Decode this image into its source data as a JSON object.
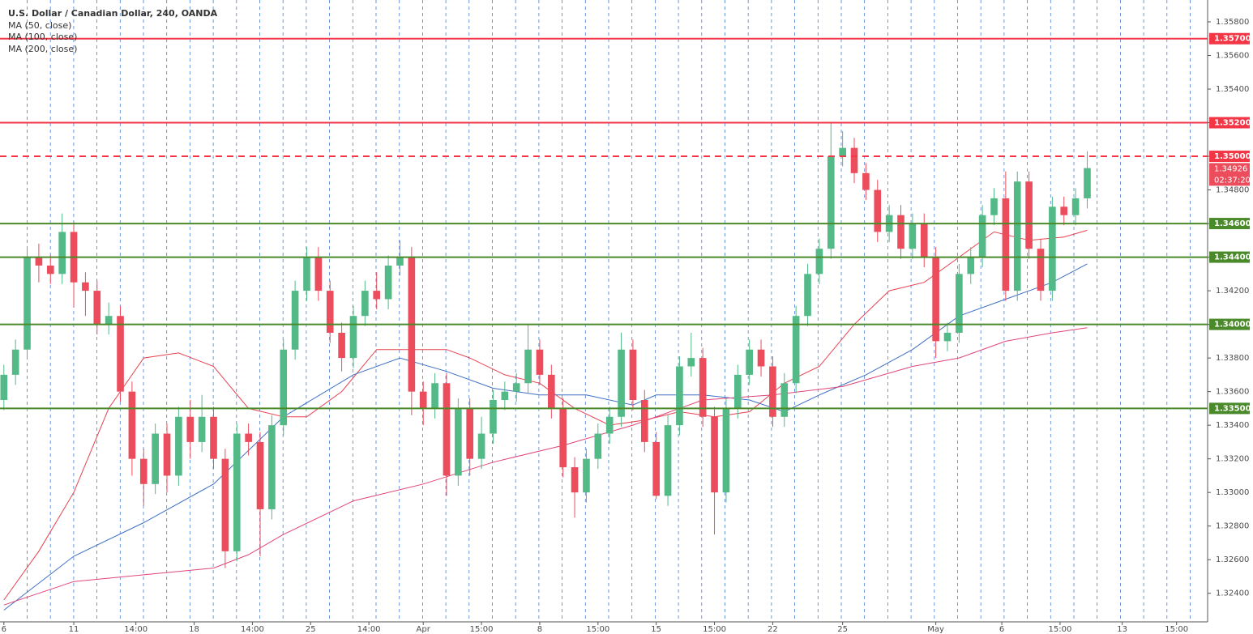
{
  "chart_data": {
    "type": "candlestick",
    "title": "U.S. Dollar / Canadian Dollar, 240, OANDA",
    "up_color": "#53b987",
    "down_color": "#eb4d5c",
    "x": [
      0,
      3,
      6,
      9,
      12,
      15,
      18,
      21,
      24,
      27,
      30,
      33,
      36,
      39,
      42,
      45,
      48,
      51,
      54,
      57,
      60,
      63,
      66,
      69,
      72,
      75,
      78,
      81,
      84,
      87,
      90,
      93,
      96,
      99,
      102,
      105,
      108,
      111,
      114,
      117,
      120,
      123,
      126,
      129,
      132,
      135,
      138,
      141,
      144,
      147,
      150,
      153,
      156,
      159,
      162,
      165,
      168,
      171,
      174,
      177,
      180,
      183,
      186,
      189,
      192,
      195,
      198,
      201,
      204,
      207,
      210,
      213,
      216,
      219,
      222,
      225,
      228,
      231,
      234,
      237,
      240,
      243,
      246,
      249,
      252,
      255,
      258,
      261,
      264,
      267,
      270,
      273,
      276,
      279
    ],
    "open": [
      1.3355,
      1.337,
      1.3385,
      1.344,
      1.3435,
      1.343,
      1.3455,
      1.3425,
      1.342,
      1.34,
      1.3405,
      1.336,
      1.332,
      1.3305,
      1.3335,
      1.331,
      1.3345,
      1.333,
      1.3345,
      1.332,
      1.3265,
      1.3335,
      1.333,
      1.329,
      1.334,
      1.3385,
      1.342,
      1.344,
      1.342,
      1.3395,
      1.338,
      1.3405,
      1.342,
      1.3415,
      1.3435,
      1.344,
      1.336,
      1.335,
      1.3365,
      1.331,
      1.335,
      1.332,
      1.3335,
      1.3355,
      1.336,
      1.3365,
      1.3385,
      1.337,
      1.335,
      1.3315,
      1.33,
      1.332,
      1.3335,
      1.3345,
      1.3385,
      1.3355,
      1.333,
      1.3298,
      1.334,
      1.3375,
      1.338,
      1.3345,
      1.33,
      1.335,
      1.337,
      1.3385,
      1.3375,
      1.3345,
      1.3365,
      1.3405,
      1.343,
      1.3445,
      1.35,
      1.3505,
      1.349,
      1.348,
      1.3455,
      1.3465,
      1.3445,
      1.346,
      1.344,
      1.339,
      1.3395,
      1.343,
      1.344,
      1.3465,
      1.3475,
      1.342,
      1.3485,
      1.3445,
      1.342,
      1.347,
      1.3465,
      1.3475
    ],
    "high": [
      1.3376,
      1.3391,
      1.3446,
      1.3448,
      1.3441,
      1.3466,
      1.3461,
      1.3431,
      1.3426,
      1.3413,
      1.3411,
      1.3366,
      1.3326,
      1.3341,
      1.3341,
      1.3351,
      1.3355,
      1.3358,
      1.3351,
      1.3326,
      1.3341,
      1.3341,
      1.3336,
      1.3346,
      1.3391,
      1.3426,
      1.3446,
      1.3446,
      1.3426,
      1.3401,
      1.3411,
      1.3426,
      1.3431,
      1.3441,
      1.345,
      1.3446,
      1.3366,
      1.3371,
      1.3371,
      1.3356,
      1.3356,
      1.3345,
      1.3361,
      1.3366,
      1.3371,
      1.34,
      1.3391,
      1.3376,
      1.3356,
      1.3321,
      1.3326,
      1.3341,
      1.3351,
      1.3395,
      1.3391,
      1.3361,
      1.3336,
      1.3346,
      1.3381,
      1.3395,
      1.3386,
      1.3351,
      1.3356,
      1.3376,
      1.3391,
      1.3391,
      1.3381,
      1.3371,
      1.3411,
      1.3436,
      1.3451,
      1.352,
      1.3515,
      1.3511,
      1.3496,
      1.3486,
      1.3471,
      1.3471,
      1.3466,
      1.3466,
      1.3446,
      1.3401,
      1.3436,
      1.3446,
      1.3471,
      1.3481,
      1.3491,
      1.3491,
      1.3491,
      1.3451,
      1.3476,
      1.3476,
      1.3481,
      1.3503
    ],
    "low": [
      1.3349,
      1.3364,
      1.3379,
      1.3425,
      1.3424,
      1.3424,
      1.341,
      1.3405,
      1.3394,
      1.3394,
      1.3354,
      1.331,
      1.3292,
      1.3299,
      1.33,
      1.3304,
      1.332,
      1.3324,
      1.3314,
      1.3255,
      1.3259,
      1.3322,
      1.3262,
      1.3284,
      1.3334,
      1.3379,
      1.3414,
      1.3414,
      1.3389,
      1.3372,
      1.3374,
      1.3399,
      1.3409,
      1.3409,
      1.3429,
      1.3346,
      1.334,
      1.3344,
      1.3298,
      1.3304,
      1.331,
      1.3314,
      1.3329,
      1.3349,
      1.3354,
      1.3359,
      1.3364,
      1.3344,
      1.3309,
      1.3285,
      1.3294,
      1.3314,
      1.3329,
      1.3339,
      1.3349,
      1.3324,
      1.3296,
      1.3292,
      1.3334,
      1.3369,
      1.3339,
      1.3275,
      1.3294,
      1.3344,
      1.3364,
      1.3369,
      1.3339,
      1.3339,
      1.3359,
      1.3399,
      1.3424,
      1.3439,
      1.3494,
      1.3484,
      1.3474,
      1.3449,
      1.3449,
      1.3439,
      1.3439,
      1.3434,
      1.338,
      1.3384,
      1.3389,
      1.3424,
      1.3434,
      1.3459,
      1.3414,
      1.3414,
      1.3439,
      1.3414,
      1.3414,
      1.3459,
      1.3459,
      1.3469
    ],
    "close": [
      1.337,
      1.3385,
      1.344,
      1.3435,
      1.343,
      1.3455,
      1.3425,
      1.342,
      1.34,
      1.3405,
      1.336,
      1.332,
      1.3305,
      1.3335,
      1.331,
      1.3345,
      1.333,
      1.3345,
      1.332,
      1.3265,
      1.3335,
      1.333,
      1.329,
      1.334,
      1.3385,
      1.342,
      1.344,
      1.342,
      1.3395,
      1.338,
      1.3405,
      1.342,
      1.3415,
      1.3435,
      1.344,
      1.336,
      1.335,
      1.3365,
      1.331,
      1.335,
      1.332,
      1.3335,
      1.3355,
      1.336,
      1.3365,
      1.3385,
      1.337,
      1.335,
      1.3315,
      1.33,
      1.332,
      1.3335,
      1.3345,
      1.3385,
      1.3355,
      1.333,
      1.3298,
      1.334,
      1.3375,
      1.338,
      1.3345,
      1.33,
      1.335,
      1.337,
      1.3385,
      1.3375,
      1.3345,
      1.3365,
      1.3405,
      1.343,
      1.3445,
      1.35,
      1.3505,
      1.349,
      1.348,
      1.3455,
      1.3465,
      1.3445,
      1.346,
      1.344,
      1.339,
      1.3395,
      1.343,
      1.344,
      1.3465,
      1.3475,
      1.342,
      1.3485,
      1.3445,
      1.342,
      1.347,
      1.3465,
      1.3475,
      1.3493
    ],
    "series": [
      {
        "name": "MA (50, close)",
        "color": "#e8414f",
        "x": [
          0,
          9,
          18,
          27,
          36,
          45,
          54,
          63,
          72,
          78,
          87,
          96,
          105,
          114,
          120,
          129,
          138,
          147,
          156,
          165,
          174,
          183,
          192,
          201,
          210,
          219,
          228,
          237,
          246,
          255,
          264,
          273,
          279
        ],
        "values": [
          1.3236,
          1.3265,
          1.33,
          1.335,
          1.338,
          1.3383,
          1.3375,
          1.335,
          1.3345,
          1.3345,
          1.336,
          1.3385,
          1.3385,
          1.3385,
          1.338,
          1.337,
          1.3365,
          1.335,
          1.334,
          1.3343,
          1.3348,
          1.3345,
          1.3348,
          1.3365,
          1.3375,
          1.34,
          1.342,
          1.3425,
          1.344,
          1.3455,
          1.345,
          1.3452,
          1.3456
        ]
      },
      {
        "name": "MA (100, close)",
        "color": "#3d6fc4",
        "x": [
          0,
          18,
          36,
          54,
          72,
          90,
          102,
          114,
          126,
          138,
          150,
          162,
          168,
          180,
          192,
          201,
          210,
          222,
          234,
          246,
          258,
          270,
          279
        ],
        "values": [
          1.323,
          1.3262,
          1.3282,
          1.3305,
          1.3345,
          1.337,
          1.338,
          1.3372,
          1.3362,
          1.3358,
          1.3358,
          1.3352,
          1.3358,
          1.3358,
          1.3355,
          1.3348,
          1.3358,
          1.337,
          1.3385,
          1.3405,
          1.3415,
          1.3425,
          1.3436
        ]
      },
      {
        "name": "MA (200, close)",
        "color": "#e0457a",
        "x": [
          0,
          18,
          36,
          54,
          63,
          72,
          90,
          108,
          126,
          144,
          162,
          180,
          198,
          216,
          234,
          246,
          258,
          270,
          279
        ],
        "values": [
          1.3233,
          1.3247,
          1.3251,
          1.3255,
          1.3263,
          1.3275,
          1.3295,
          1.3305,
          1.3318,
          1.3328,
          1.334,
          1.3355,
          1.3358,
          1.3363,
          1.3375,
          1.338,
          1.339,
          1.3395,
          1.3398
        ]
      }
    ],
    "levels": [
      {
        "value": 1.357,
        "label": "1.35700",
        "color": "#f23645",
        "style": "solid"
      },
      {
        "value": 1.352,
        "label": "1.35200",
        "color": "#f23645",
        "style": "solid"
      },
      {
        "value": 1.35,
        "label": "1.35000",
        "color": "#f23645",
        "style": "dashed"
      },
      {
        "value": 1.346,
        "label": "1.34600",
        "color": "#4b8a2a",
        "style": "solid"
      },
      {
        "value": 1.344,
        "label": "1.34400",
        "color": "#4b8a2a",
        "style": "solid"
      },
      {
        "value": 1.34,
        "label": "1.34000",
        "color": "#4b8a2a",
        "style": "solid"
      },
      {
        "value": 1.335,
        "label": "1.33500",
        "color": "#4b8a2a",
        "style": "solid"
      }
    ],
    "last_price": {
      "value": 1.34926,
      "label": "1.34926"
    },
    "countdown": "02:37:20",
    "xlim": [
      -1,
      310
    ],
    "xticks": [
      {
        "value": 0,
        "label": "6"
      },
      {
        "value": 18,
        "label": "11"
      },
      {
        "value": 34,
        "label": "14:00"
      },
      {
        "value": 49,
        "label": "18"
      },
      {
        "value": 64,
        "label": "14:00"
      },
      {
        "value": 79,
        "label": "25"
      },
      {
        "value": 94,
        "label": "14:00"
      },
      {
        "value": 108,
        "label": "Apr"
      },
      {
        "value": 123,
        "label": "15:00"
      },
      {
        "value": 138,
        "label": "8"
      },
      {
        "value": 153,
        "label": "15:00"
      },
      {
        "value": 168,
        "label": "15"
      },
      {
        "value": 183,
        "label": "15:00"
      },
      {
        "value": 198,
        "label": "22"
      },
      {
        "value": 216,
        "label": "25"
      },
      {
        "value": 240,
        "label": "May"
      },
      {
        "value": 257,
        "label": "6"
      },
      {
        "value": 272,
        "label": "15:00"
      },
      {
        "value": 288,
        "label": "13"
      },
      {
        "value": 302,
        "label": "15:00"
      }
    ],
    "ylim": [
      1.3223,
      1.3593
    ],
    "yticks": [
      {
        "value": 1.324,
        "label": "1.32400"
      },
      {
        "value": 1.326,
        "label": "1.32600"
      },
      {
        "value": 1.328,
        "label": "1.32800"
      },
      {
        "value": 1.33,
        "label": "1.33000"
      },
      {
        "value": 1.332,
        "label": "1.33200"
      },
      {
        "value": 1.334,
        "label": "1.33400"
      },
      {
        "value": 1.336,
        "label": "1.33600"
      },
      {
        "value": 1.338,
        "label": "1.33800"
      },
      {
        "value": 1.34,
        "label": "1.34000"
      },
      {
        "value": 1.342,
        "label": "1.34200"
      },
      {
        "value": 1.344,
        "label": "1.34400"
      },
      {
        "value": 1.346,
        "label": "1.34600"
      },
      {
        "value": 1.348,
        "label": "1.34800"
      },
      {
        "value": 1.35,
        "label": "1.35000"
      },
      {
        "value": 1.352,
        "label": "1.35200"
      },
      {
        "value": 1.354,
        "label": "1.35400"
      },
      {
        "value": 1.356,
        "label": "1.35600"
      },
      {
        "value": 1.358,
        "label": "1.35800"
      }
    ]
  }
}
